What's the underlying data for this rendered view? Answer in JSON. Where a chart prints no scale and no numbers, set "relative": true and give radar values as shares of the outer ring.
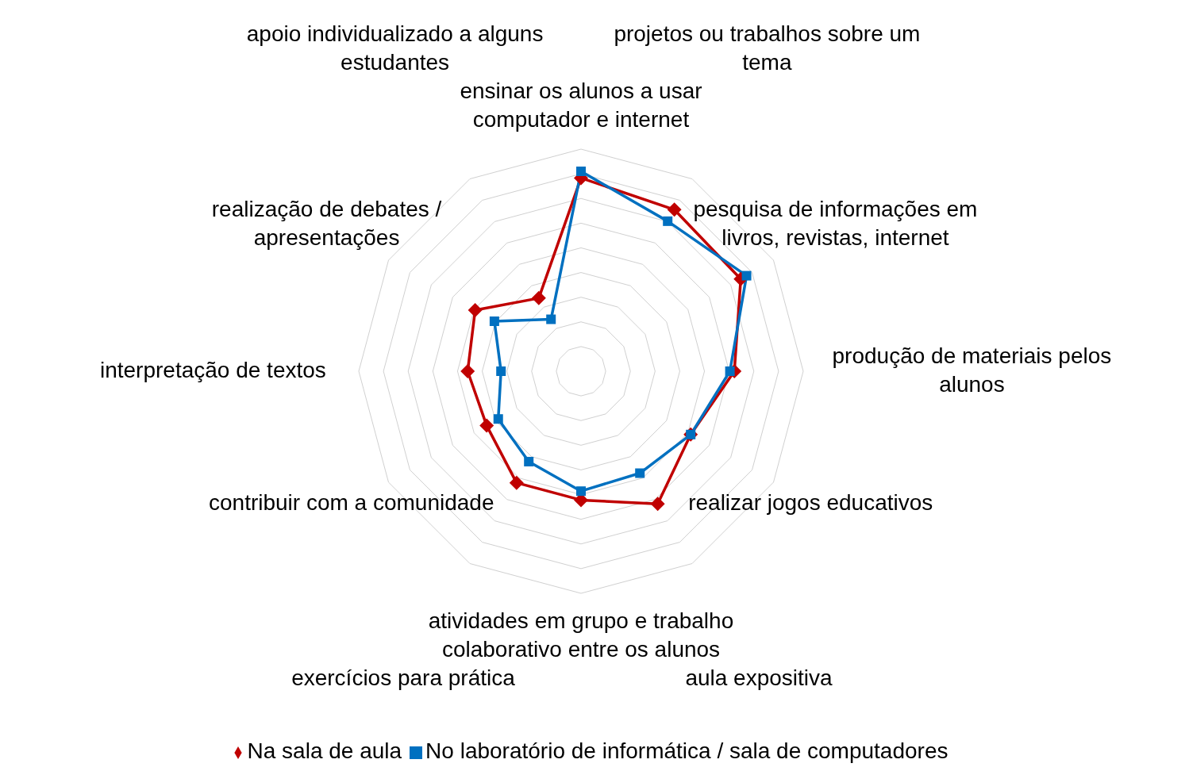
{
  "chart_data": {
    "type": "radar",
    "relative": true,
    "grid": true,
    "legend": "bottom",
    "line_style": "solid",
    "categories": [
      "ensinar os alunos a usar computador e internet",
      "projetos ou trabalhos sobre um tema",
      "pesquisa de informações em livros, revistas, internet",
      "produção de materiais pelos alunos",
      "realizar jogos educativos",
      "aula expositiva",
      "atividades em grupo e trabalho colaborativo entre os alunos",
      "exercícios para prática",
      "contribuir com a comunidade",
      "interpretação de textos",
      "realização de debates / apresentações",
      "apoio individualizado a alguns estudantes"
    ],
    "series": [
      {
        "name": "Na sala de aula",
        "color": "#c00000",
        "marker": "diamond",
        "values": [
          0.87,
          0.84,
          0.83,
          0.69,
          0.57,
          0.69,
          0.58,
          0.58,
          0.49,
          0.51,
          0.55,
          0.38
        ]
      },
      {
        "name": "No laboratório de informática / sala de computadores",
        "color": "#0070c0",
        "marker": "square",
        "values": [
          0.9,
          0.78,
          0.86,
          0.67,
          0.57,
          0.53,
          0.54,
          0.47,
          0.43,
          0.36,
          0.45,
          0.27
        ]
      }
    ]
  }
}
